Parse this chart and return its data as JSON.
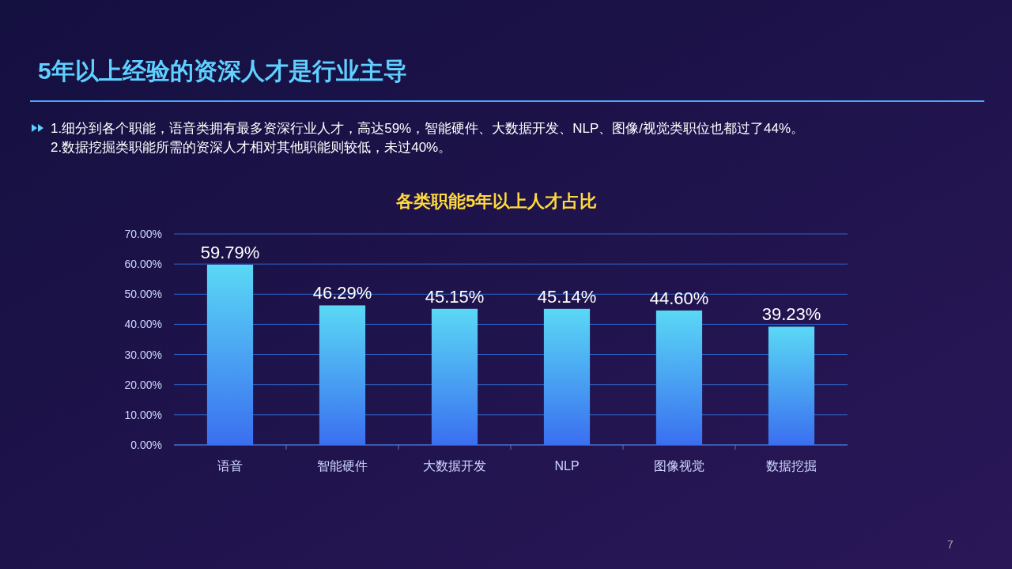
{
  "chart_data": {
    "type": "bar",
    "title": "5年以上经验的资深人才是行业主导",
    "subtitle": "各类职能5年以上人才占比",
    "annotations": [
      "1.细分到各个职能，语音类拥有最多资深行业人才，高达59%，智能硬件、大数据开发、NLP、图像/视觉类职位也都过了44%。",
      "2.数据挖掘类职能所需的资深人才相对其他职能则较低，未过40%。",
      "7"
    ],
    "categories": [
      "语音",
      "智能硬件",
      "大数据开发",
      "NLP",
      "图像视觉",
      "数据挖掘"
    ],
    "values": [
      59.79,
      46.29,
      45.15,
      45.14,
      44.6,
      39.23
    ],
    "value_labels": [
      "59.79%",
      "46.29%",
      "45.15%",
      "45.14%",
      "44.60%",
      "39.23%"
    ],
    "color": "#5ad8f5",
    "ylim": [
      0,
      70
    ],
    "yticks": [
      {
        "value": 0,
        "label": "0.00%"
      },
      {
        "value": 10,
        "label": "10.00%"
      },
      {
        "value": 20,
        "label": "20.00%"
      },
      {
        "value": 30,
        "label": "30.00%"
      },
      {
        "value": 40,
        "label": "40.00%"
      },
      {
        "value": 50,
        "label": "50.00%"
      },
      {
        "value": 60,
        "label": "60.00%"
      },
      {
        "value": 70,
        "label": "70.00%"
      }
    ],
    "grid": "y"
  }
}
